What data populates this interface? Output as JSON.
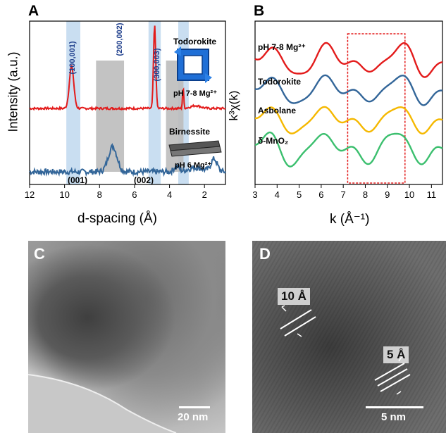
{
  "panels": {
    "a": {
      "letter": "A",
      "xlabel": "d-spacing (Å)",
      "ylabel": "Intensity (a.u.)",
      "xticks": [
        "12",
        "10",
        "8",
        "6",
        "4",
        "2"
      ],
      "peak_labels_top": [
        "(100,001)",
        "(200,002)",
        "(300,003)"
      ],
      "peak_labels_bottom": [
        "(001)",
        "(002)"
      ],
      "label_todorokite": "Todorokite",
      "label_ph_high": "pH 7-8 Mg²⁺",
      "label_birnessite": "Birnessite",
      "label_ph_low": "pH 6 Mg²⁺",
      "colors": {
        "top": "#e31b1b",
        "bottom": "#336699",
        "band_blue": "#bcd6ee",
        "band_gray": "#bdbdbd"
      }
    },
    "b": {
      "letter": "B",
      "xlabel": "k (Å⁻¹)",
      "ylabel": "k³χ(k)",
      "xticks": [
        "3",
        "4",
        "5",
        "6",
        "7",
        "8",
        "9",
        "10",
        "11"
      ],
      "labels": [
        "pH 7-8 Mg²⁺",
        "Todorokite",
        "Asbolane",
        "δ-MnO₂"
      ],
      "colors": [
        "#e31b1b",
        "#336699",
        "#f5b800",
        "#3bbf6e"
      ]
    },
    "c": {
      "letter": "C",
      "scalebar": "20 nm"
    },
    "d": {
      "letter": "D",
      "scalebar": "5 nm",
      "spacing_large": "10 Å",
      "spacing_small": "5 Å"
    }
  },
  "chart_data": [
    {
      "type": "line",
      "panel": "A",
      "xlabel": "d-spacing (Å)",
      "ylabel": "Intensity (a.u.)",
      "xlim": [
        12,
        0.8
      ],
      "series": [
        {
          "name": "pH 7-8 Mg²⁺",
          "peaks_d": [
            9.6,
            4.8,
            3.2
          ],
          "peak_heights": [
            0.6,
            1.0,
            0.25
          ]
        },
        {
          "name": "pH 6 Mg²⁺",
          "peaks_d": [
            7.2,
            3.6,
            1.4
          ],
          "peak_heights": [
            0.45,
            0.12,
            0.3
          ]
        }
      ]
    },
    {
      "type": "line",
      "panel": "B",
      "xlabel": "k (Å⁻¹)",
      "ylabel": "k³χ(k)",
      "xlim": [
        3,
        11.5
      ],
      "series": [
        {
          "name": "pH 7-8 Mg²⁺"
        },
        {
          "name": "Todorokite"
        },
        {
          "name": "Asbolane"
        },
        {
          "name": "δ-MnO₂"
        }
      ],
      "highlight_k_range": [
        7.2,
        9.8
      ]
    }
  ]
}
